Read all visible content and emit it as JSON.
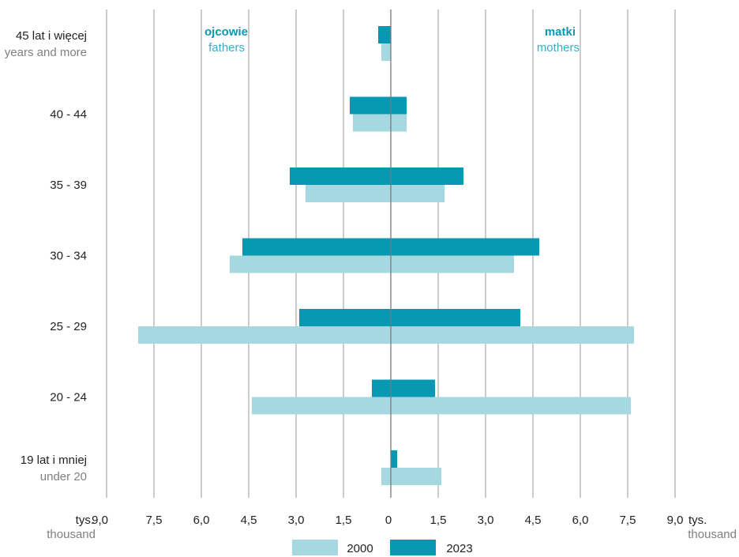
{
  "chart_data": {
    "type": "bar",
    "orientation": "horizontal-butterfly",
    "categories": [
      {
        "pl": "45 lat i więcej",
        "en": "years and more"
      },
      {
        "pl": "40 - 44",
        "en": ""
      },
      {
        "pl": "35 - 39",
        "en": ""
      },
      {
        "pl": "30 - 34",
        "en": ""
      },
      {
        "pl": "25 - 29",
        "en": ""
      },
      {
        "pl": "20 - 24",
        "en": ""
      },
      {
        "pl": "19 lat i mniej",
        "en": "under 20"
      }
    ],
    "left_group": {
      "pl": "ojcowie",
      "en": "fathers"
    },
    "right_group": {
      "pl": "matki",
      "en": "mothers"
    },
    "series": [
      {
        "name": "2000",
        "color": "#a6d8e1",
        "fathers": [
          0.3,
          1.2,
          2.7,
          5.1,
          8.0,
          4.4,
          0.3
        ],
        "mothers": [
          0.0,
          0.5,
          1.7,
          3.9,
          7.7,
          7.6,
          1.6
        ]
      },
      {
        "name": "2023",
        "color": "#0898b2",
        "fathers": [
          0.4,
          1.3,
          3.2,
          4.7,
          2.9,
          0.6,
          0.0
        ],
        "mothers": [
          0.0,
          0.5,
          2.3,
          4.7,
          4.1,
          1.4,
          0.2
        ]
      }
    ],
    "ticks_left": [
      "9,0",
      "7,5",
      "6,0",
      "4,5",
      "3,0",
      "1,5"
    ],
    "ticks_right": [
      "0",
      "1,5",
      "3,0",
      "4,5",
      "6,0",
      "7,5",
      "9,0"
    ],
    "unit": {
      "pl": "tys.",
      "en": "thousand"
    },
    "xlim": [
      -9,
      9
    ],
    "grid": true,
    "legend_position": "bottom-center"
  }
}
